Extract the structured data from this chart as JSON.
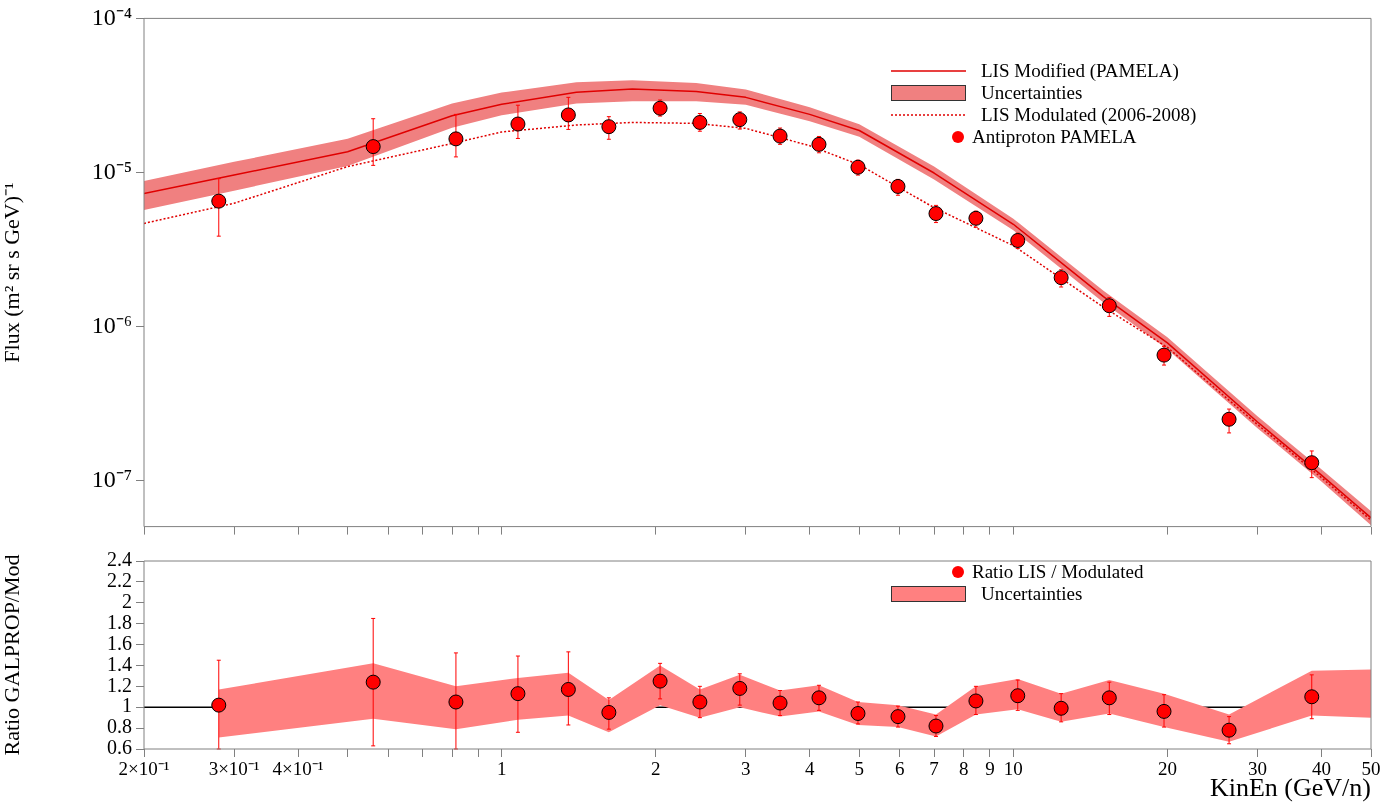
{
  "chart_data": [
    {
      "type": "scatter",
      "ylabel": "Flux (m² sr s GeV)⁻¹",
      "annotations": [
        "Uncertainties"
      ],
      "log": "xy",
      "grid": false,
      "legend": "top right",
      "tick_labels": "y",
      "xlim": [
        0.2,
        50
      ],
      "xticks": [
        {
          "value": 0.2,
          "label": null
        },
        {
          "value": 0.3,
          "label": null
        },
        {
          "value": 0.4,
          "label": null
        },
        {
          "value": 0.5,
          "label": null
        },
        {
          "value": 0.6,
          "label": null
        },
        {
          "value": 0.7,
          "label": null
        },
        {
          "value": 0.8,
          "label": null
        },
        {
          "value": 0.9,
          "label": null
        },
        {
          "value": 1,
          "label": null
        },
        {
          "value": 2,
          "label": null
        },
        {
          "value": 3,
          "label": null
        },
        {
          "value": 4,
          "label": null
        },
        {
          "value": 5,
          "label": null
        },
        {
          "value": 6,
          "label": null
        },
        {
          "value": 7,
          "label": null
        },
        {
          "value": 8,
          "label": null
        },
        {
          "value": 9,
          "label": null
        },
        {
          "value": 10,
          "label": null
        },
        {
          "value": 20,
          "label": null
        },
        {
          "value": 30,
          "label": null
        },
        {
          "value": 40,
          "label": null
        },
        {
          "value": 50,
          "label": null
        }
      ],
      "ylim": [
        5e-08,
        0.0001
      ],
      "yticks": [
        {
          "value": 1e-07,
          "label": "10⁻⁷"
        },
        {
          "value": 1e-06,
          "label": "10⁻⁶"
        },
        {
          "value": 1e-05,
          "label": "10⁻⁵"
        },
        {
          "value": 0.0001,
          "label": "10⁻⁴"
        }
      ],
      "series": [
        {
          "name": "LIS Modified (PAMELA)",
          "type": "line",
          "color": "#e00000",
          "line_style": "solid",
          "x": [
            0.2,
            0.3,
            0.5,
            0.8,
            1,
            1.4,
            1.8,
            2.4,
            3,
            4,
            5,
            7,
            10,
            15,
            20,
            30,
            40,
            50
          ],
          "values": [
            7.3e-06,
            9.6e-06,
            1.36e-05,
            2.33e-05,
            2.77e-05,
            3.31e-05,
            3.48e-05,
            3.35e-05,
            3.07e-05,
            2.38e-05,
            1.87e-05,
            9.9e-06,
            4.6e-06,
            1.56e-06,
            7.8e-07,
            2.39e-07,
            1.08e-07,
            5.7e-08
          ],
          "lower": [
            5.7e-06,
            7.6e-06,
            1.1e-05,
            1.95e-05,
            2.35e-05,
            2.8e-05,
            2.9e-05,
            2.9e-05,
            2.75e-05,
            2.15e-05,
            1.7e-05,
            9e-06,
            4.2e-06,
            1.43e-06,
            7.1e-07,
            2.18e-07,
            9.8e-08,
            5.1e-08
          ],
          "upper": [
            8.8e-06,
            1.17e-05,
            1.65e-05,
            2.8e-05,
            3.3e-05,
            3.85e-05,
            3.96e-05,
            3.8e-05,
            3.45e-05,
            2.65e-05,
            2.05e-05,
            1.09e-05,
            5e-06,
            1.7e-06,
            8.5e-07,
            2.6e-07,
            1.18e-07,
            6.3e-08
          ]
        },
        {
          "name": "LIS Modulated (2006-2008)",
          "type": "line",
          "color": "#e00000",
          "line_style": "dotted",
          "x": [
            0.2,
            0.3,
            0.5,
            0.8,
            1,
            1.4,
            1.8,
            2.4,
            3,
            4,
            5,
            7,
            10,
            15,
            20,
            30,
            40,
            50
          ],
          "values": [
            4.66e-06,
            6.3e-06,
            1.09e-05,
            1.54e-05,
            1.83e-05,
            2.03e-05,
            2.11e-05,
            2.08e-05,
            1.93e-05,
            1.49e-05,
            1.12e-05,
            5.9e-06,
            3.34e-06,
            1.33e-06,
            7.3e-07,
            2.3e-07,
            1.04e-07,
            5.5e-08
          ]
        },
        {
          "name": "Antiproton PAMELA",
          "type": "scatter",
          "color": "#ff0000",
          "marker": "circle",
          "x": [
            0.28,
            0.561,
            0.814,
            1.076,
            1.35,
            1.62,
            2.04,
            2.44,
            2.92,
            3.5,
            4.17,
            4.97,
            5.95,
            7.06,
            8.45,
            10.2,
            12.4,
            15.4,
            19.7,
            26.4,
            38.3
          ],
          "values": [
            6.5e-06,
            1.47e-05,
            1.65e-05,
            2.06e-05,
            2.36e-05,
            1.98e-05,
            2.61e-05,
            2.11e-05,
            2.2e-05,
            1.72e-05,
            1.52e-05,
            1.08e-05,
            8.1e-06,
            5.4e-06,
            5.03e-06,
            3.61e-06,
            2.07e-06,
            1.36e-06,
            6.5e-07,
            2.49e-07,
            1.3e-07
          ],
          "errors": [
            [
              3.85e-06,
              9.1e-06
            ],
            [
              1.11e-05,
              2.23e-05
            ],
            [
              1.26e-05,
              2.38e-05
            ],
            [
              1.66e-05,
              2.73e-05
            ],
            [
              1.9e-05,
              3.07e-05
            ],
            [
              1.64e-05,
              2.3e-05
            ],
            [
              2.32e-05,
              2.95e-05
            ],
            [
              1.85e-05,
              2.41e-05
            ],
            [
              1.91e-05,
              2.47e-05
            ],
            [
              1.52e-05,
              1.94e-05
            ],
            [
              1.34e-05,
              1.71e-05
            ],
            [
              9.6e-06,
              1.2e-05
            ],
            [
              7.1e-06,
              9e-06
            ],
            [
              4.72e-06,
              6.1e-06
            ],
            [
              4.4e-06,
              5.6e-06
            ],
            [
              3.2e-06,
              4.03e-06
            ],
            [
              1.8e-06,
              2.33e-06
            ],
            [
              1.16e-06,
              1.54e-06
            ],
            [
              5.6e-07,
              7.4e-07
            ],
            [
              2.03e-07,
              2.9e-07
            ],
            [
              1.04e-07,
              1.55e-07
            ]
          ]
        }
      ]
    },
    {
      "type": "scatter",
      "ylabel": "Ratio GALPROP/Mod",
      "xlabel": "KinEn (GeV/n)",
      "annotations": [
        "Uncertainties"
      ],
      "log": "x",
      "grid": false,
      "legend": "top right",
      "xlim": [
        0.2,
        50
      ],
      "xticks": [
        {
          "value": 0.2,
          "label": "2×10⁻¹"
        },
        {
          "value": 0.3,
          "label": "3×10⁻¹"
        },
        {
          "value": 0.4,
          "label": "4×10⁻¹"
        },
        {
          "value": 0.5,
          "label": null
        },
        {
          "value": 0.6,
          "label": null
        },
        {
          "value": 0.7,
          "label": null
        },
        {
          "value": 0.8,
          "label": null
        },
        {
          "value": 0.9,
          "label": null
        },
        1,
        2,
        3,
        4,
        5,
        6,
        7,
        8,
        9,
        10,
        20,
        30,
        40,
        50
      ],
      "ylim": [
        0.6,
        2.4
      ],
      "yticks": [
        0.6,
        0.8,
        1,
        1.2,
        1.4,
        1.6,
        1.8,
        2,
        2.2,
        2.4
      ],
      "ref_lines": [
        {
          "axis": "y",
          "value": 1,
          "color": "#000000"
        }
      ],
      "series": [
        {
          "name": "Ratio LIS / Modulated",
          "type": "scatter",
          "color": "#ff0000",
          "marker": "circle",
          "x": [
            0.28,
            0.561,
            0.814,
            1.076,
            1.35,
            1.62,
            2.04,
            2.44,
            2.92,
            3.5,
            4.17,
            4.97,
            5.95,
            7.06,
            8.45,
            10.2,
            12.4,
            15.4,
            19.7,
            26.4,
            38.3,
            50
          ],
          "values": [
            1.02,
            1.24,
            1.05,
            1.13,
            1.17,
            0.95,
            1.25,
            1.05,
            1.18,
            1.04,
            1.09,
            0.94,
            0.91,
            0.82,
            1.06,
            1.11,
            0.99,
            1.09,
            0.96,
            0.78,
            1.1,
            null
          ],
          "errors": [
            [
              0.6,
              1.45
            ],
            [
              0.63,
              1.85
            ],
            [
              0.6,
              1.52
            ],
            [
              0.76,
              1.49
            ],
            [
              0.83,
              1.53
            ],
            [
              0.79,
              1.09
            ],
            [
              1.08,
              1.42
            ],
            [
              0.9,
              1.2
            ],
            [
              1.02,
              1.32
            ],
            [
              0.92,
              1.16
            ],
            [
              0.97,
              1.21
            ],
            [
              0.84,
              1.05
            ],
            [
              0.81,
              1.01
            ],
            [
              0.72,
              0.92
            ],
            [
              0.93,
              1.2
            ],
            [
              0.97,
              1.26
            ],
            [
              0.86,
              1.13
            ],
            [
              0.93,
              1.24
            ],
            [
              0.81,
              1.12
            ],
            [
              0.65,
              0.91
            ],
            [
              0.89,
              1.31
            ],
            null
          ],
          "lower": [
            0.71,
            0.89,
            0.79,
            0.88,
            0.92,
            0.76,
            1.02,
            0.9,
            1,
            0.91,
            0.96,
            0.83,
            0.81,
            0.72,
            0.93,
            0.98,
            0.86,
            0.94,
            0.81,
            0.67,
            0.92,
            0.9
          ],
          "upper": [
            1.17,
            1.42,
            1.2,
            1.28,
            1.33,
            1.07,
            1.4,
            1.17,
            1.31,
            1.16,
            1.21,
            1.05,
            1.02,
            0.93,
            1.2,
            1.27,
            1.13,
            1.26,
            1.13,
            0.93,
            1.35,
            1.36
          ]
        }
      ]
    }
  ]
}
